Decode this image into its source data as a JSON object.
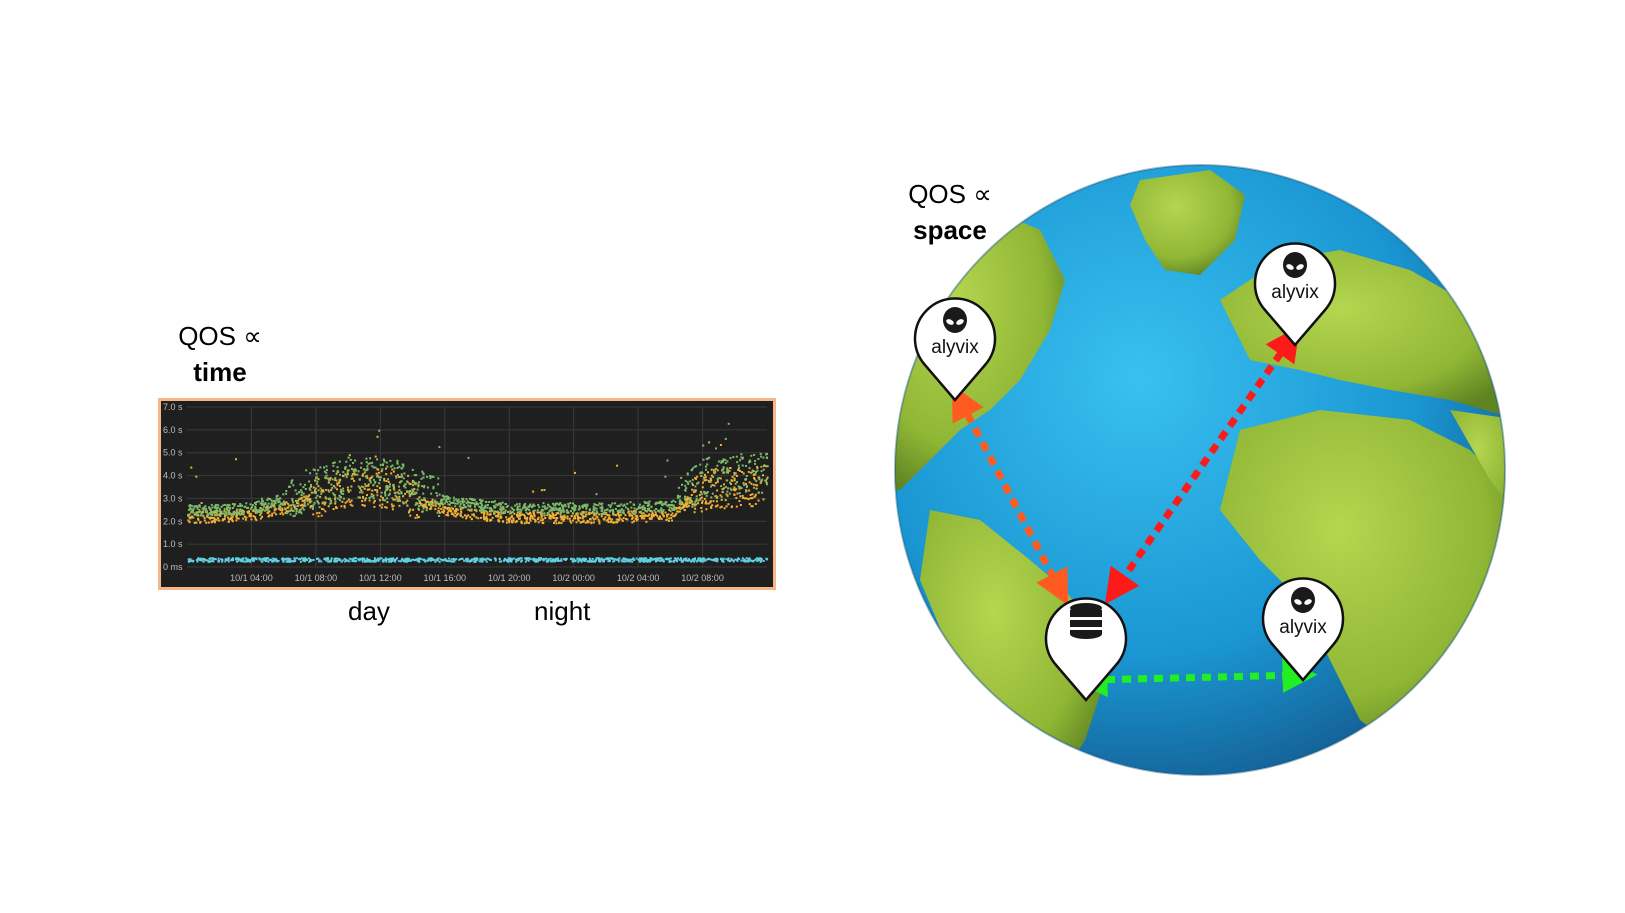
{
  "time_label": {
    "line1": "QOS ∝",
    "line2": "time"
  },
  "space_label": {
    "line1": "QOS ∝",
    "line2": "space"
  },
  "captions": {
    "day": "day",
    "night": "night"
  },
  "chart_data": {
    "type": "scatter",
    "title": "",
    "xlabel": "",
    "ylabel": "",
    "background": "#1f1f1f",
    "y_ticks": [
      "7.0 s",
      "6.0 s",
      "5.0 s",
      "4.0 s",
      "3.0 s",
      "2.0 s",
      "1.0 s",
      "0 ms"
    ],
    "x_ticks": [
      "10/1 04:00",
      "10/1 08:00",
      "10/1 12:00",
      "10/1 16:00",
      "10/1 20:00",
      "10/2 00:00",
      "10/2 04:00",
      "10/2 08:00"
    ],
    "ylim": [
      0,
      7
    ],
    "xlim_hours": [
      0,
      36
    ],
    "series": [
      {
        "color": "#f2b134",
        "baseline_seconds": [
          [
            0,
            2.2
          ],
          [
            4,
            2.3
          ],
          [
            6,
            2.6
          ],
          [
            10,
            3.6
          ],
          [
            13,
            3.4
          ],
          [
            16,
            2.5
          ],
          [
            20,
            2.2
          ],
          [
            26,
            2.2
          ],
          [
            30,
            2.3
          ],
          [
            32,
            3.4
          ],
          [
            36,
            3.6
          ]
        ]
      },
      {
        "color": "#7dbb6a",
        "baseline_seconds": [
          [
            0,
            2.5
          ],
          [
            4,
            2.6
          ],
          [
            6,
            3.0
          ],
          [
            10,
            4.0
          ],
          [
            13,
            3.8
          ],
          [
            16,
            2.9
          ],
          [
            20,
            2.6
          ],
          [
            26,
            2.6
          ],
          [
            30,
            2.7
          ],
          [
            32,
            3.9
          ],
          [
            36,
            4.2
          ]
        ]
      },
      {
        "color": "#5fd0e0",
        "baseline_seconds": [
          [
            0,
            0.35
          ],
          [
            36,
            0.35
          ]
        ]
      }
    ]
  },
  "map": {
    "ocean_color": "#1ea4dc",
    "land_color": "#9cc23a",
    "pins": [
      {
        "name": "alyvix-north-america",
        "label": "alyvix",
        "icon": "alien-head-icon"
      },
      {
        "name": "alyvix-europe",
        "label": "alyvix",
        "icon": "alien-head-icon"
      },
      {
        "name": "alyvix-africa",
        "label": "alyvix",
        "icon": "alien-head-icon"
      },
      {
        "name": "database-south-america",
        "label": "",
        "icon": "database-icon"
      }
    ],
    "links": [
      {
        "from": "alyvix-north-america",
        "to": "database-south-america",
        "color": "#ff5a1f"
      },
      {
        "from": "alyvix-europe",
        "to": "database-south-america",
        "color": "#ff1a1a"
      },
      {
        "from": "database-south-america",
        "to": "alyvix-africa",
        "color": "#22ee22"
      }
    ]
  }
}
